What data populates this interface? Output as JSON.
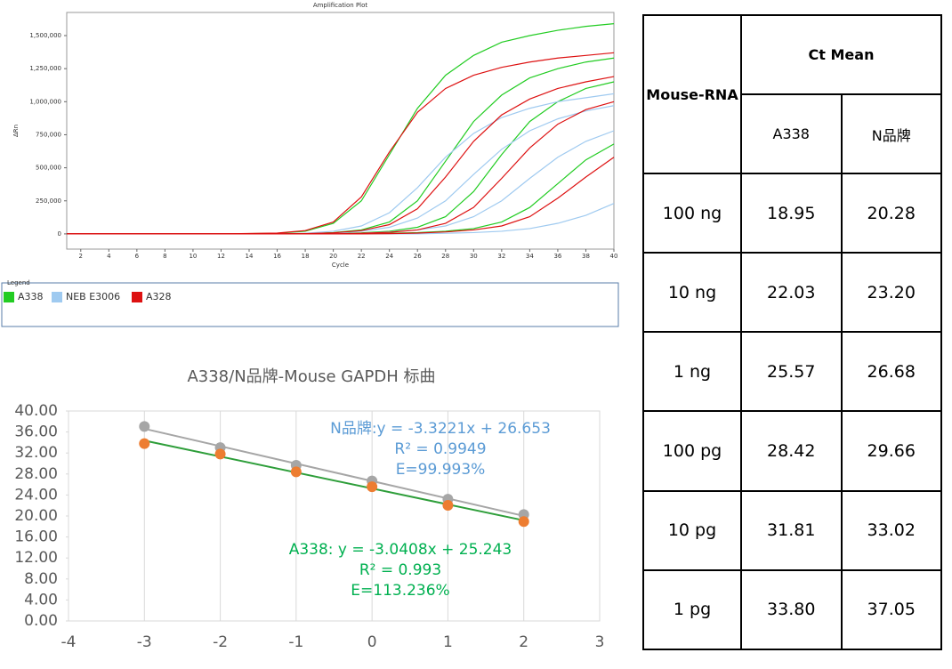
{
  "chart_data": [
    {
      "type": "line",
      "title": "Amplification Plot",
      "xlabel": "Cycle",
      "ylabel": "ΔRn",
      "legend_title": "Legend",
      "x": [
        1,
        4,
        8,
        12,
        16,
        18,
        20,
        22,
        24,
        26,
        28,
        30,
        32,
        34,
        36,
        38,
        40
      ],
      "xlim": [
        1,
        40
      ],
      "xticks": [
        2,
        4,
        6,
        8,
        10,
        12,
        14,
        16,
        18,
        20,
        22,
        24,
        26,
        28,
        30,
        32,
        34,
        36,
        38,
        40
      ],
      "ylim": [
        -115000,
        1675000
      ],
      "yticks": [
        0,
        {
          "value": 250000,
          "label": "250,000"
        },
        {
          "value": 500000,
          "label": "500,000"
        },
        {
          "value": 750000,
          "label": "750,000"
        },
        {
          "value": 1000000,
          "label": "1,000,000"
        },
        {
          "value": 1250000,
          "label": "1,250,000"
        },
        {
          "value": 1500000,
          "label": "1,500,000"
        }
      ],
      "grid": false,
      "series": [
        {
          "name": "A338",
          "color": "#22cc22",
          "curves": [
            [
              0,
              0,
              0,
              0,
              5000,
              20000,
              80000,
              250000,
              600000,
              950000,
              1200000,
              1350000,
              1450000,
              1500000,
              1540000,
              1570000,
              1590000
            ],
            [
              0,
              0,
              0,
              0,
              0,
              3000,
              10000,
              30000,
              90000,
              250000,
              550000,
              850000,
              1050000,
              1180000,
              1250000,
              1300000,
              1330000
            ],
            [
              0,
              0,
              0,
              0,
              0,
              0,
              2000,
              8000,
              20000,
              50000,
              130000,
              320000,
              600000,
              850000,
              1000000,
              1100000,
              1150000
            ],
            [
              0,
              0,
              0,
              0,
              0,
              0,
              0,
              0,
              5000,
              10000,
              20000,
              40000,
              90000,
              200000,
              380000,
              560000,
              680000
            ]
          ]
        },
        {
          "name": "NEB E3006",
          "color": "#9fcaf0",
          "curves": [
            [
              0,
              0,
              0,
              0,
              0,
              5000,
              20000,
              60000,
              160000,
              350000,
              580000,
              760000,
              880000,
              950000,
              1000000,
              1030000,
              1060000
            ],
            [
              0,
              0,
              0,
              0,
              0,
              0,
              5000,
              20000,
              50000,
              120000,
              250000,
              450000,
              640000,
              780000,
              870000,
              930000,
              970000
            ],
            [
              0,
              0,
              0,
              0,
              0,
              0,
              0,
              5000,
              15000,
              30000,
              60000,
              130000,
              250000,
              420000,
              580000,
              700000,
              780000
            ],
            [
              0,
              0,
              0,
              0,
              0,
              0,
              0,
              0,
              0,
              0,
              5000,
              10000,
              20000,
              40000,
              80000,
              140000,
              230000
            ]
          ]
        },
        {
          "name": "A328",
          "color": "#dd1111",
          "curves": [
            [
              0,
              0,
              0,
              0,
              6000,
              25000,
              90000,
              280000,
              620000,
              920000,
              1100000,
              1200000,
              1260000,
              1300000,
              1330000,
              1350000,
              1370000
            ],
            [
              0,
              0,
              0,
              0,
              0,
              2000,
              8000,
              25000,
              70000,
              190000,
              430000,
              700000,
              900000,
              1020000,
              1100000,
              1150000,
              1190000
            ],
            [
              0,
              0,
              0,
              0,
              0,
              0,
              0,
              5000,
              12000,
              30000,
              80000,
              200000,
              420000,
              650000,
              830000,
              940000,
              1000000
            ],
            [
              0,
              0,
              0,
              0,
              0,
              0,
              0,
              0,
              2000,
              6000,
              15000,
              30000,
              60000,
              130000,
              270000,
              430000,
              580000
            ]
          ]
        }
      ]
    },
    {
      "type": "scatter",
      "title": "A338/N品牌-Mouse GAPDH 标曲",
      "xlim": [
        -4,
        3
      ],
      "xticks": [
        -4,
        -3,
        -2,
        -1,
        0,
        1,
        2,
        3
      ],
      "ylim": [
        0,
        40
      ],
      "yticks": [
        {
          "value": 0,
          "label": "0.00"
        },
        {
          "value": 4,
          "label": "4.00"
        },
        {
          "value": 8,
          "label": "8.00"
        },
        {
          "value": 12,
          "label": "12.00"
        },
        {
          "value": 16,
          "label": "16.00"
        },
        {
          "value": 20,
          "label": "20.00"
        },
        {
          "value": 24,
          "label": "24.00"
        },
        {
          "value": 28,
          "label": "28.00"
        },
        {
          "value": 32,
          "label": "32.00"
        },
        {
          "value": 36,
          "label": "36.00"
        },
        {
          "value": 40,
          "label": "40.00"
        }
      ],
      "grid": "x",
      "series": [
        {
          "color": "#a6a6a6",
          "x": [
            -3,
            -2,
            -1,
            0,
            1,
            2
          ],
          "values": [
            37.05,
            33.02,
            29.66,
            26.68,
            23.2,
            20.28
          ]
        },
        {
          "color": "#ed7d31",
          "x": [
            -3,
            -2,
            -1,
            0,
            1,
            2
          ],
          "values": [
            33.8,
            31.81,
            28.42,
            25.57,
            22.03,
            18.95
          ]
        }
      ],
      "trendlines": [
        {
          "color": "#a6a6a6",
          "text_color": "#5b9bd5",
          "slope": -3.3221,
          "intercept": 26.653,
          "equation": "N品牌:y = -3.3221x + 26.653",
          "r2": "R² = 0.9949",
          "efficiency": "E=99.993%"
        },
        {
          "color": "#2e9e3a",
          "text_color": "#00b050",
          "slope": -3.0408,
          "intercept": 25.243,
          "equation": "A338: y = -3.0408x + 25.243",
          "r2": "R² = 0.993",
          "efficiency": "E=113.236%"
        }
      ]
    }
  ],
  "table": {
    "header": {
      "row_label": "Mouse-RNA",
      "group": "Ct Mean",
      "columns": [
        "A338",
        "N品牌"
      ]
    },
    "rows": [
      [
        "100 ng",
        "18.95",
        "20.28"
      ],
      [
        "10 ng",
        "22.03",
        "23.20"
      ],
      [
        "1 ng",
        "25.57",
        "26.68"
      ],
      [
        "100 pg",
        "28.42",
        "29.66"
      ],
      [
        "10 pg",
        "31.81",
        "33.02"
      ],
      [
        "1 pg",
        "33.80",
        "37.05"
      ]
    ]
  }
}
